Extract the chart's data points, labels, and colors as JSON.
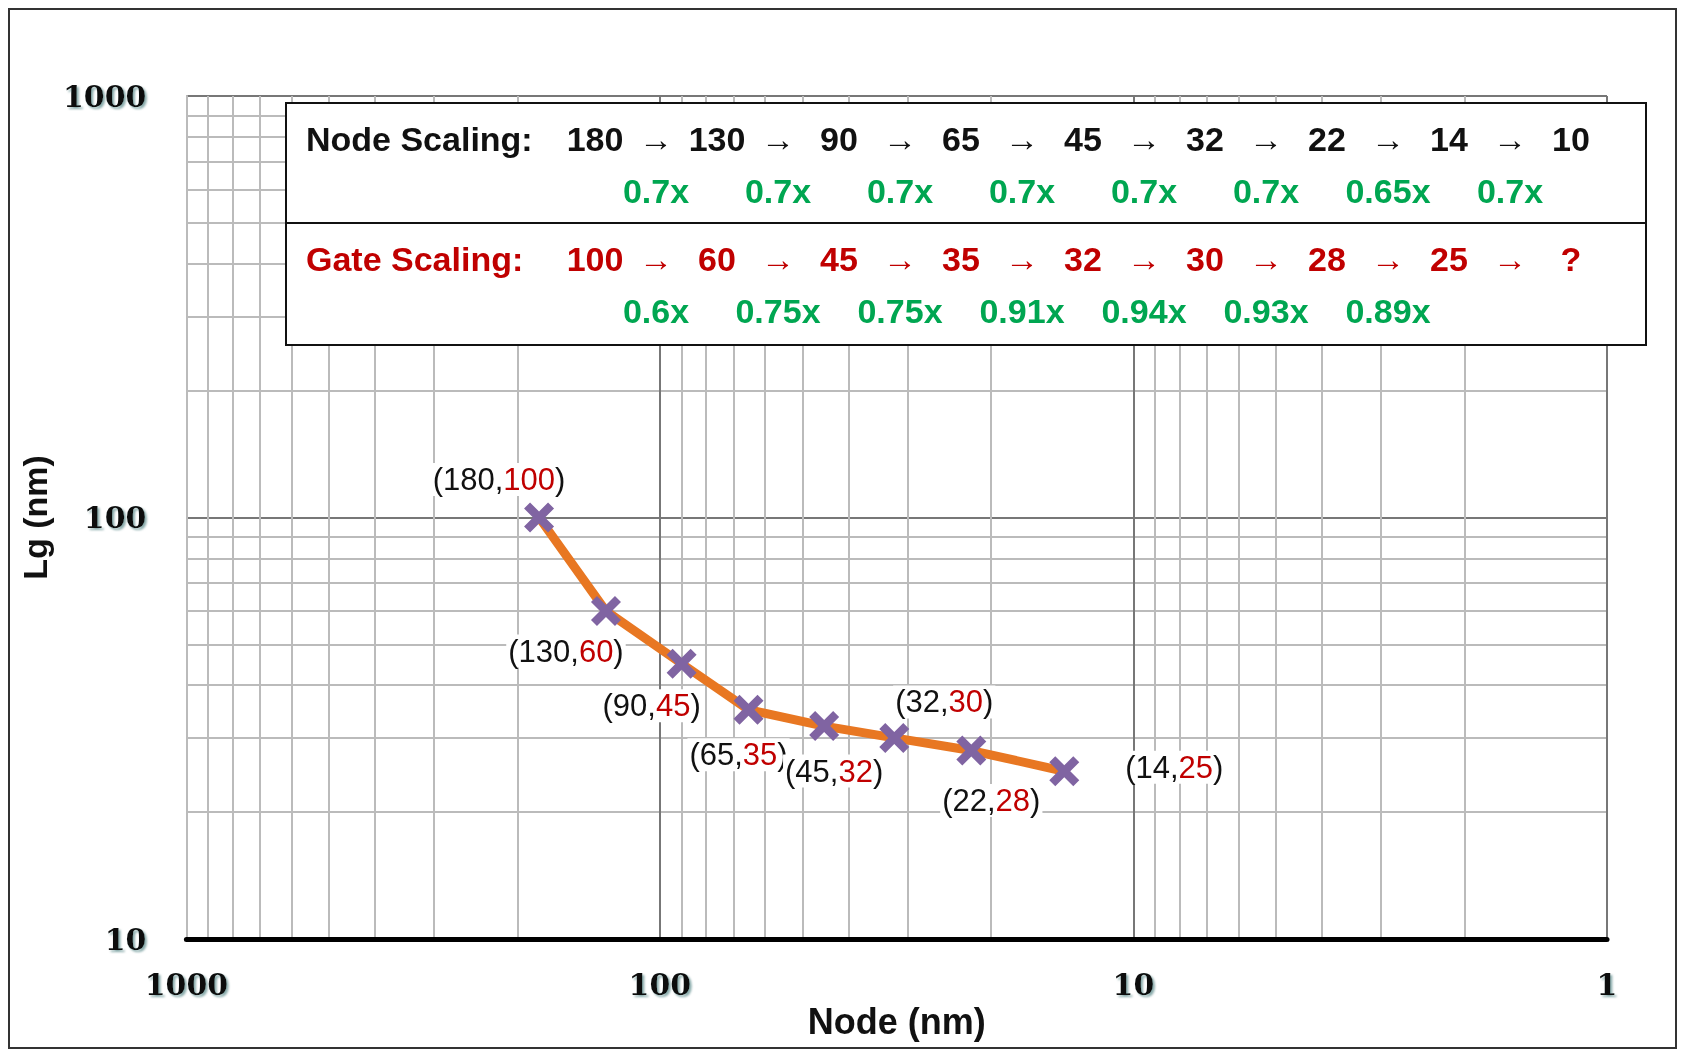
{
  "chart_data": {
    "type": "line",
    "xlabel": "Node (nm)",
    "ylabel": "Lg (nm)",
    "x": [
      180,
      130,
      90,
      65,
      45,
      32,
      22,
      14
    ],
    "series": [
      {
        "color": "#e87722",
        "colors": [
          "#8064a2",
          "#8064a2",
          "#8064a2",
          "#8064a2",
          "#8064a2",
          "#8064a2",
          "#8064a2",
          "#8064a2"
        ],
        "values": [
          100,
          60,
          45,
          35,
          32,
          30,
          28,
          25
        ]
      }
    ],
    "xlim": [
      1000,
      1
    ],
    "xticks": [
      1000,
      100,
      10,
      1
    ],
    "ylim": [
      10,
      1000
    ],
    "yticks": [
      10,
      100,
      1000
    ],
    "log": "xy",
    "grid": true,
    "marker": "cross",
    "line_style": "solid",
    "annotations": [
      "Node Scaling:",
      "180 → 130 → 90 → 65 → 45 → 32 → 22 → 14 → 10",
      "0.7x 0.7x 0.7x 0.7x 0.7x 0.7x 0.65x 0.7x",
      "Gate Scaling:",
      "100 → 60 → 45 → 35 → 32 → 30 → 28 → 25 → ?",
      "0.6x 0.75x 0.75x 0.91x 0.94x 0.93x 0.89x",
      {
        "text": "(180,100)",
        "x": 180,
        "y": 100
      },
      {
        "text": "(130,60)",
        "x": 130,
        "y": 60
      },
      {
        "text": "(90,45)",
        "x": 90,
        "y": 45
      },
      {
        "text": "(65,35)",
        "x": 65,
        "y": 35
      },
      {
        "text": "(45,32)",
        "x": 45,
        "y": 32
      },
      {
        "text": "(32,30)",
        "x": 32,
        "y": 30
      },
      {
        "text": "(22,28)",
        "x": 22,
        "y": 28
      },
      {
        "text": "(14,25)",
        "x": 14,
        "y": 25
      }
    ]
  }
}
